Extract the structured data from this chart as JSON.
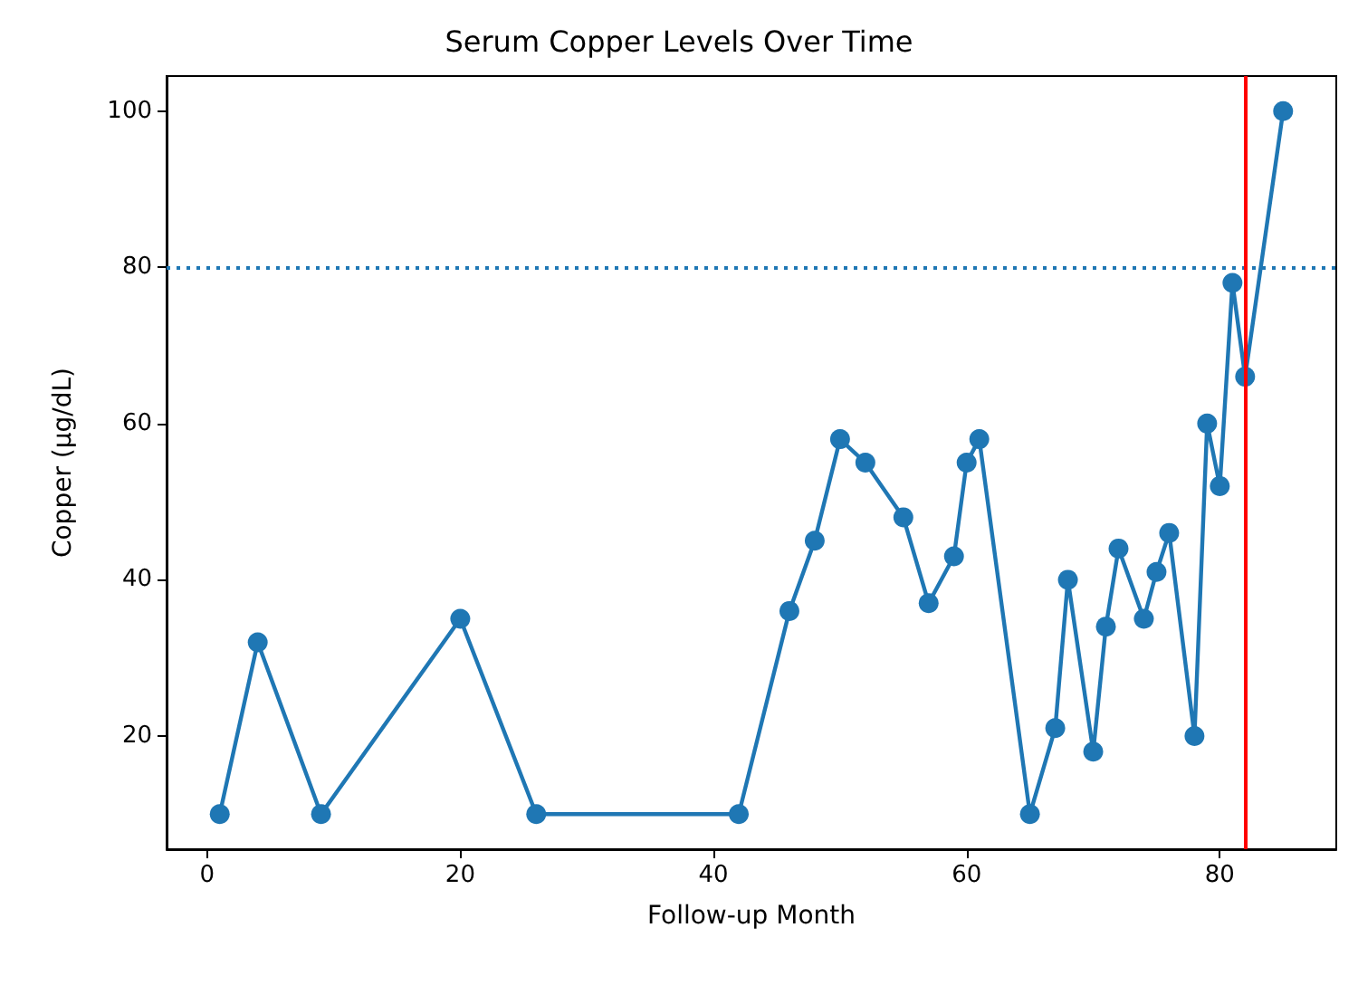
{
  "chart_data": {
    "type": "line",
    "title": "Serum Copper Levels Over Time",
    "xlabel": "Follow-up Month",
    "ylabel": "Copper (µg/dL)",
    "x": [
      1,
      4,
      9,
      20,
      26,
      42,
      46,
      48,
      50,
      52,
      55,
      57,
      59,
      60,
      61,
      65,
      67,
      68,
      70,
      71,
      72,
      74,
      75,
      76,
      78,
      79,
      80,
      81,
      82,
      85
    ],
    "series": [
      {
        "color": "#1f77b4",
        "values": [
          10,
          32,
          10,
          35,
          10,
          10,
          36,
          45,
          58,
          55,
          48,
          37,
          43,
          55,
          58,
          10,
          21,
          40,
          18,
          34,
          44,
          35,
          41,
          46,
          20,
          60,
          52,
          78,
          66,
          100
        ]
      }
    ],
    "xlim": [
      -3.2,
      89.2
    ],
    "xticks": [
      0,
      20,
      40,
      60,
      80
    ],
    "ylim": [
      5.5,
      104.5
    ],
    "yticks": [
      20,
      40,
      60,
      80,
      100
    ],
    "marker": "circle",
    "line_style": "solid",
    "grid": false,
    "ref_lines": [
      {
        "axis": "y",
        "value": 80,
        "color": "#1f77b4",
        "line_style": "dotted"
      },
      {
        "axis": "x",
        "value": 82,
        "color": "#ff0000",
        "line_style": "solid"
      }
    ]
  }
}
